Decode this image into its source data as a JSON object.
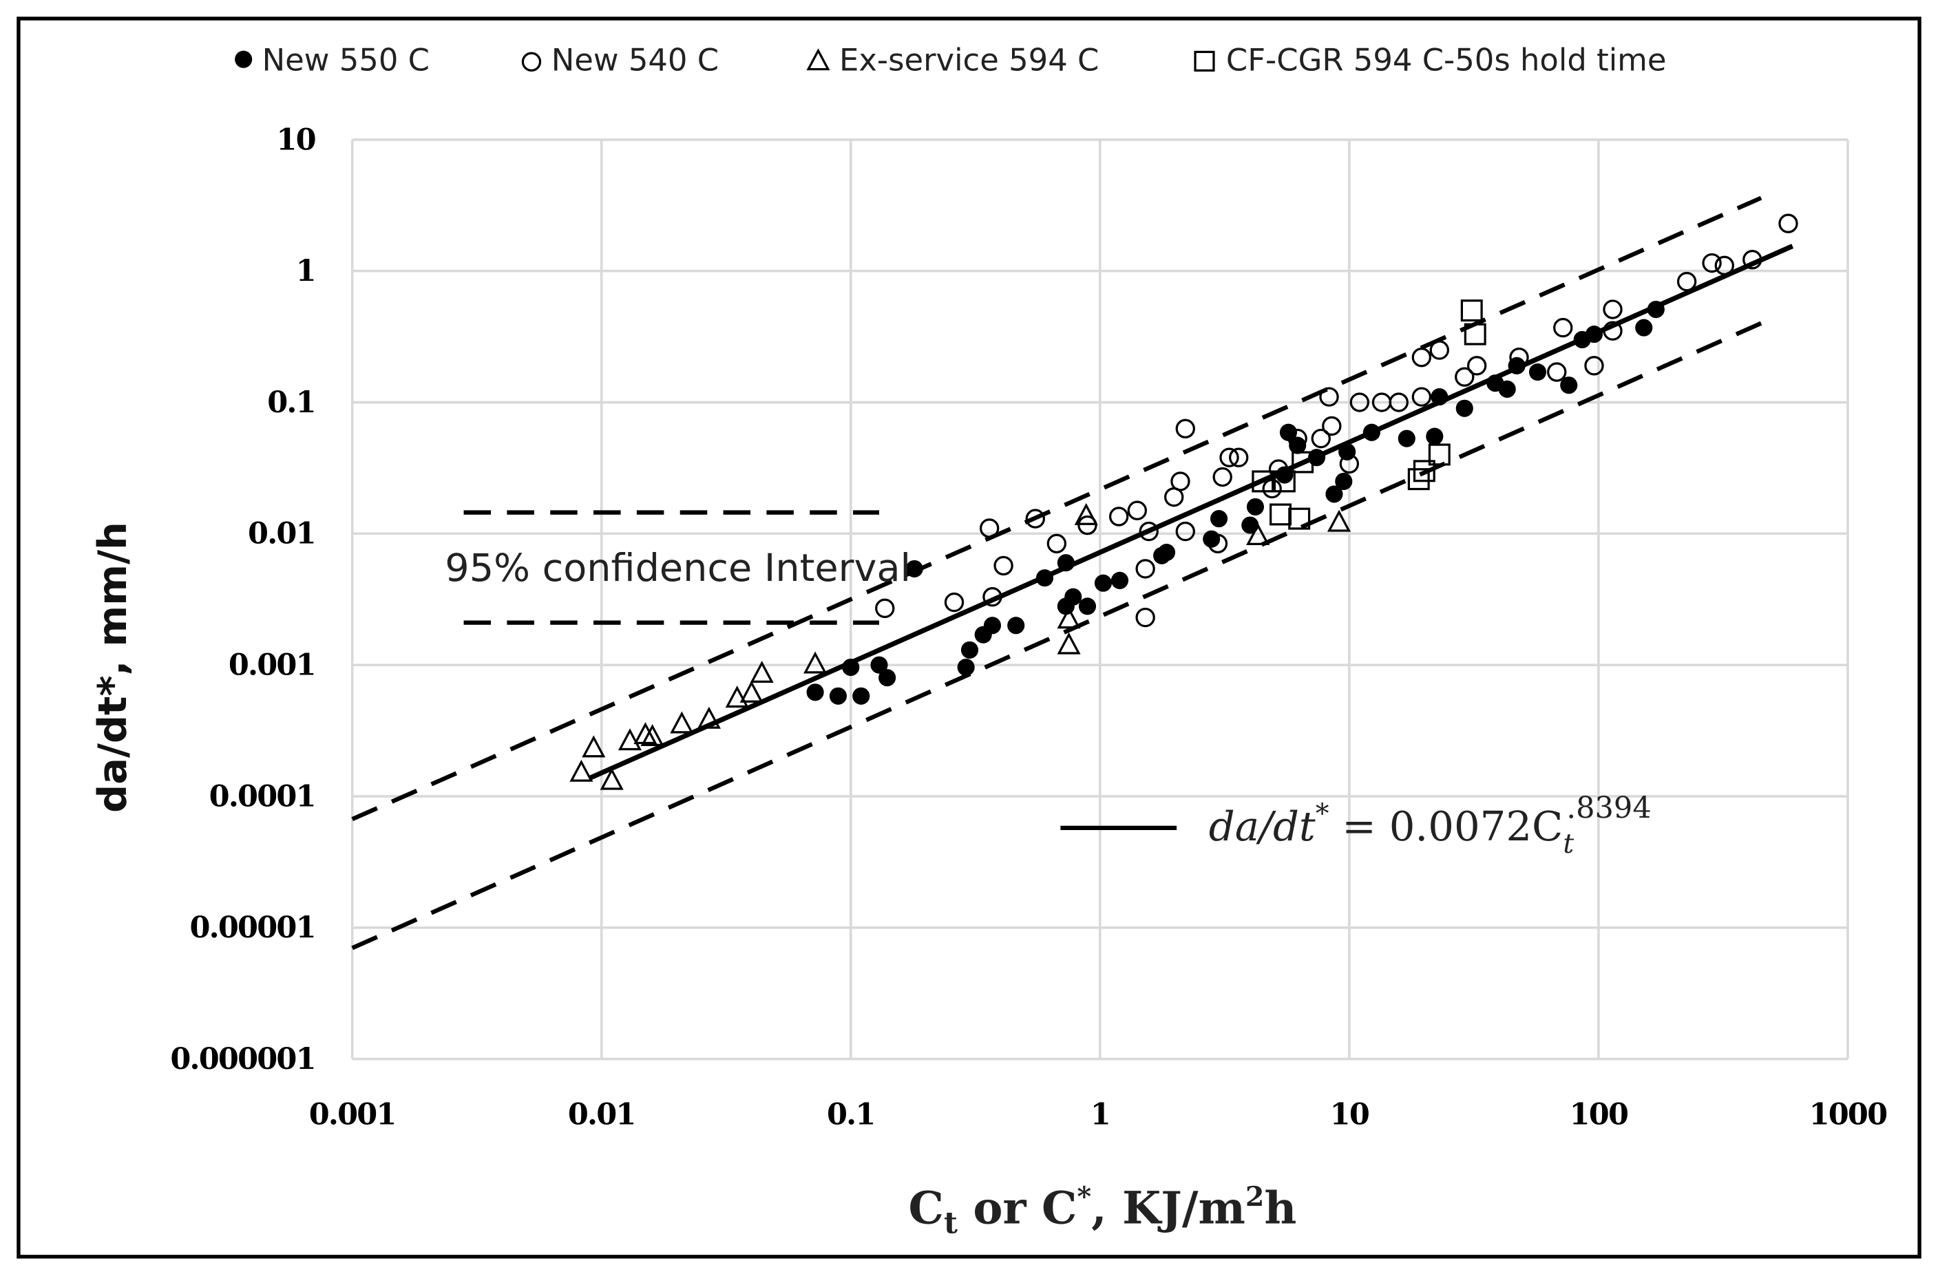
{
  "chart_data": {
    "type": "scatter",
    "xscale": "log",
    "yscale": "log",
    "xlim": [
      0.001,
      1000
    ],
    "ylim": [
      1e-06,
      10
    ],
    "grid": true,
    "legend_placement": "top",
    "xlabel": {
      "main": "C",
      "sub": "t",
      "rest": " or C",
      "sup": "*",
      "tail": ", KJ/m",
      "sup2": "2",
      "end": "h"
    },
    "ylabel": "da/dt*, mm/h",
    "x_ticks": [
      "0.001",
      "0.01",
      "0.1",
      "1",
      "10",
      "100",
      "1000"
    ],
    "x_tick_values": [
      0.001,
      0.01,
      0.1,
      1,
      10,
      100,
      1000
    ],
    "y_ticks": [
      "10",
      "1",
      "0.1",
      "0.01",
      "0.001",
      "0.0001",
      "0.00001",
      "0.000001"
    ],
    "y_tick_values": [
      10,
      1,
      0.1,
      0.01,
      0.001,
      0.0001,
      1e-05,
      1e-06
    ],
    "colors": {
      "marker": "#000000",
      "grid": "#d9d9d9",
      "line": "#000000"
    },
    "series": [
      {
        "name": "New 550 C",
        "marker": "filled-circle",
        "points": [
          [
            0.072,
            0.00062
          ],
          [
            0.089,
            0.00058
          ],
          [
            0.11,
            0.00058
          ],
          [
            0.1,
            0.00096
          ],
          [
            0.13,
            0.001
          ],
          [
            0.14,
            0.0008
          ],
          [
            0.29,
            0.00096
          ],
          [
            0.3,
            0.0013
          ],
          [
            0.34,
            0.0017
          ],
          [
            0.37,
            0.002
          ],
          [
            0.46,
            0.002
          ],
          [
            0.6,
            0.0046
          ],
          [
            0.73,
            0.006
          ],
          [
            0.73,
            0.0028
          ],
          [
            0.78,
            0.0033
          ],
          [
            0.89,
            0.0028
          ],
          [
            1.03,
            0.0042
          ],
          [
            1.2,
            0.0044
          ],
          [
            1.77,
            0.0068
          ],
          [
            1.85,
            0.0072
          ],
          [
            2.8,
            0.0091
          ],
          [
            3.0,
            0.013
          ],
          [
            4.0,
            0.0116
          ],
          [
            4.2,
            0.016
          ],
          [
            5.5,
            0.028
          ],
          [
            5.7,
            0.059
          ],
          [
            6.2,
            0.047
          ],
          [
            7.4,
            0.038
          ],
          [
            8.7,
            0.02
          ],
          [
            9.5,
            0.025
          ],
          [
            9.8,
            0.042
          ],
          [
            12.3,
            0.059
          ],
          [
            17,
            0.053
          ],
          [
            22,
            0.055
          ],
          [
            23,
            0.11
          ],
          [
            29,
            0.09
          ],
          [
            38.5,
            0.14
          ],
          [
            43,
            0.126
          ],
          [
            47,
            0.19
          ],
          [
            57,
            0.17
          ],
          [
            76,
            0.135
          ],
          [
            86,
            0.3
          ],
          [
            96,
            0.33
          ],
          [
            152,
            0.37
          ],
          [
            170,
            0.51
          ],
          [
            0.18,
            0.0054
          ]
        ]
      },
      {
        "name": "New 540 C",
        "marker": "open-circle",
        "points": [
          [
            0.36,
            0.011
          ],
          [
            0.41,
            0.0057
          ],
          [
            0.55,
            0.013
          ],
          [
            0.137,
            0.0027
          ],
          [
            0.26,
            0.003
          ],
          [
            0.37,
            0.0033
          ],
          [
            0.67,
            0.0084
          ],
          [
            0.89,
            0.0116
          ],
          [
            1.19,
            0.0135
          ],
          [
            1.41,
            0.015
          ],
          [
            1.52,
            0.0023
          ],
          [
            1.52,
            0.0054
          ],
          [
            1.57,
            0.0104
          ],
          [
            1.98,
            0.019
          ],
          [
            2.1,
            0.025
          ],
          [
            2.2,
            0.063
          ],
          [
            2.2,
            0.0104
          ],
          [
            3.1,
            0.027
          ],
          [
            3.3,
            0.038
          ],
          [
            3.6,
            0.038
          ],
          [
            4.9,
            0.022
          ],
          [
            6.2,
            0.053
          ],
          [
            8.3,
            0.11
          ],
          [
            8.5,
            0.066
          ],
          [
            10,
            0.034
          ],
          [
            11,
            0.1
          ],
          [
            13.5,
            0.1
          ],
          [
            15.8,
            0.1
          ],
          [
            19.5,
            0.11
          ],
          [
            19.5,
            0.22
          ],
          [
            23,
            0.25
          ],
          [
            29,
            0.156
          ],
          [
            32.5,
            0.19
          ],
          [
            48,
            0.22
          ],
          [
            68,
            0.17
          ],
          [
            72,
            0.37
          ],
          [
            96,
            0.19
          ],
          [
            114,
            0.51
          ],
          [
            114,
            0.35
          ],
          [
            226,
            0.83
          ],
          [
            285,
            1.15
          ],
          [
            320,
            1.1
          ],
          [
            414,
            1.22
          ],
          [
            577,
            2.3
          ],
          [
            5.2,
            0.031
          ],
          [
            7.7,
            0.053
          ],
          [
            2.97,
            0.0084
          ]
        ]
      },
      {
        "name": "Ex-service 594 C",
        "marker": "open-triangle",
        "points": [
          [
            0.0083,
            0.00015
          ],
          [
            0.0093,
            0.00023
          ],
          [
            0.011,
            0.00013
          ],
          [
            0.013,
            0.00026
          ],
          [
            0.015,
            0.00029
          ],
          [
            0.016,
            0.00028
          ],
          [
            0.021,
            0.00035
          ],
          [
            0.027,
            0.00038
          ],
          [
            0.035,
            0.00055
          ],
          [
            0.04,
            0.0006
          ],
          [
            0.044,
            0.00085
          ],
          [
            0.072,
            0.001
          ],
          [
            0.75,
            0.0014
          ],
          [
            0.75,
            0.0022
          ],
          [
            0.88,
            0.0135
          ],
          [
            4.3,
            0.0095
          ],
          [
            9.1,
            0.012
          ]
        ]
      },
      {
        "name": "CF-CGR 594 C-50s hold time",
        "marker": "open-square",
        "points": [
          [
            31,
            0.5
          ],
          [
            32,
            0.33
          ],
          [
            4.5,
            0.025
          ],
          [
            5.3,
            0.014
          ],
          [
            6.3,
            0.013
          ],
          [
            6.5,
            0.035
          ],
          [
            19,
            0.026
          ],
          [
            20,
            0.03
          ],
          [
            23,
            0.04
          ],
          [
            5.5,
            0.025
          ]
        ]
      }
    ],
    "fit": {
      "coefficient": 0.0072,
      "exponent": 0.8394,
      "x_range": [
        0.009,
        600
      ]
    },
    "confidence_bands": [
      {
        "from": [
          0.001,
          6.7e-05
        ],
        "to": [
          449,
          3.6
        ]
      },
      {
        "from": [
          0.001,
          7e-06
        ],
        "to": [
          449,
          0.4
        ]
      }
    ],
    "annotation": {
      "text": "95% confidence Interval",
      "marker_lines": [
        {
          "from": [
            0.0028,
            0.0145
          ],
          "to": [
            0.13,
            0.0145
          ]
        },
        {
          "from": [
            0.0028,
            0.0021
          ],
          "to": [
            0.13,
            0.0021
          ]
        }
      ]
    },
    "equation": {
      "lhs": "da/dt",
      "lhs_sup": "*",
      "eq": " = 0.0072C",
      "sub": "t",
      "sup": ".8394"
    }
  }
}
